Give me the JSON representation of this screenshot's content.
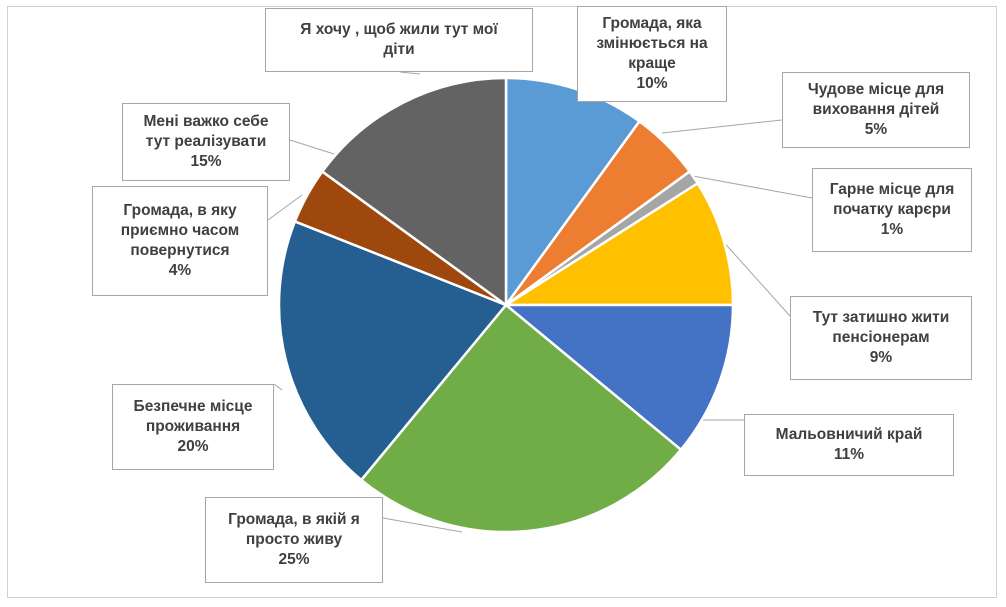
{
  "chart_data": {
    "type": "pie",
    "title": "",
    "slices": [
      {
        "label": "Громада, яка змінюється на краще",
        "lines": [
          "Громада, яка",
          "змінюється на",
          "краще"
        ],
        "value": 10,
        "display": "10%",
        "color": "#5B9BD5"
      },
      {
        "label": "Чудове місце для виховання дітей",
        "lines": [
          "Чудове місце для",
          "виховання дітей"
        ],
        "value": 5,
        "display": "5%",
        "color": "#ED7D31"
      },
      {
        "label": "Гарне місце для початку карєри",
        "lines": [
          "Гарне місце для",
          "початку карєри"
        ],
        "value": 1,
        "display": "1%",
        "color": "#A5A5A5"
      },
      {
        "label": "Тут затишно жити пенсіонерам",
        "lines": [
          "Тут затишно жити",
          "пенсіонерам"
        ],
        "value": 9,
        "display": "9%",
        "color": "#FFC000"
      },
      {
        "label": "Мальовничий край",
        "lines": [
          "Мальовничий край"
        ],
        "value": 11,
        "display": "11%",
        "color": "#4472C4"
      },
      {
        "label": "Громада, в якій я просто живу",
        "lines": [
          "Громада, в якій я",
          "просто живу"
        ],
        "value": 25,
        "display": "25%",
        "color": "#70AD47"
      },
      {
        "label": "Безпечне місце проживання",
        "lines": [
          "Безпечне місце",
          "проживання"
        ],
        "value": 20,
        "display": "20%",
        "color": "#255E91"
      },
      {
        "label": "Громада, в яку приємно часом повернутися",
        "lines": [
          "Громада, в яку",
          "приємно часом",
          "повернутися"
        ],
        "value": 4,
        "display": "4%",
        "color": "#9E480E"
      },
      {
        "label": "Мені важко себе тут реалізувати",
        "lines": [
          "Мені важко себе",
          "тут реалізувати"
        ],
        "value": 15,
        "display": "15%",
        "color": "#636363"
      },
      {
        "label": "Я хочу , щоб жили тут мої діти",
        "lines": [
          "Я хочу , щоб жили тут мої",
          "діти"
        ],
        "value": 0,
        "display": "",
        "color": "#264478"
      }
    ]
  }
}
